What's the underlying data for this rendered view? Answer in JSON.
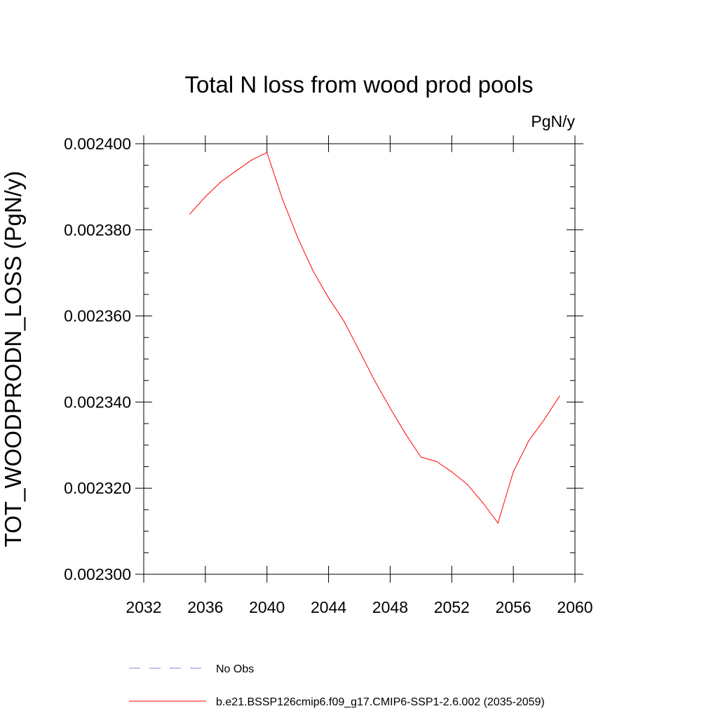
{
  "chart_data": {
    "type": "line",
    "title": "Total N loss from wood prod pools",
    "units_label": "PgN/y",
    "ylabel": "TOT_WOODPRODN_LOSS  (PgN/y)",
    "xlabel": "",
    "xlim": [
      2032,
      2060
    ],
    "ylim": [
      0.0023,
      0.0024
    ],
    "x_ticks": [
      2032,
      2036,
      2040,
      2044,
      2048,
      2052,
      2056,
      2060
    ],
    "x_tick_labels": [
      "2032",
      "2036",
      "2040",
      "2044",
      "2048",
      "2052",
      "2056",
      "2060"
    ],
    "y_ticks": [
      0.0023,
      0.00232,
      0.00234,
      0.00236,
      0.00238,
      0.0024
    ],
    "y_tick_labels": [
      "0.002300",
      "0.002320",
      "0.002340",
      "0.002360",
      "0.002380",
      "0.002400"
    ],
    "grid": false,
    "legend_position": "bottom",
    "series": [
      {
        "name": "b.e21.BSSP126cmip6.f09_g17.CMIP6-SSP1-2.6.002 (2035-2059)",
        "color": "#ff0000",
        "style": "solid",
        "x": [
          2035,
          2036,
          2037,
          2038,
          2039,
          2040,
          2041,
          2042,
          2043,
          2044,
          2045,
          2046,
          2047,
          2048,
          2049,
          2050,
          2051,
          2052,
          2053,
          2054,
          2055,
          2056,
          2057,
          2058,
          2059
        ],
        "values": [
          0.0023837,
          0.0023877,
          0.0023911,
          0.0023937,
          0.0023962,
          0.002398,
          0.0023872,
          0.0023782,
          0.0023704,
          0.0023642,
          0.0023588,
          0.0023519,
          0.0023449,
          0.0023386,
          0.0023326,
          0.0023272,
          0.0023262,
          0.0023238,
          0.0023209,
          0.0023167,
          0.0023119,
          0.0023238,
          0.002331,
          0.0023359,
          0.0023414
        ]
      }
    ],
    "legend": [
      {
        "label": "No Obs",
        "color": "#8a84c8",
        "style": "dashed"
      },
      {
        "label": "b.e21.BSSP126cmip6.f09_g17.CMIP6-SSP1-2.6.002 (2035-2059)",
        "color": "#ff0000",
        "style": "solid"
      }
    ]
  }
}
